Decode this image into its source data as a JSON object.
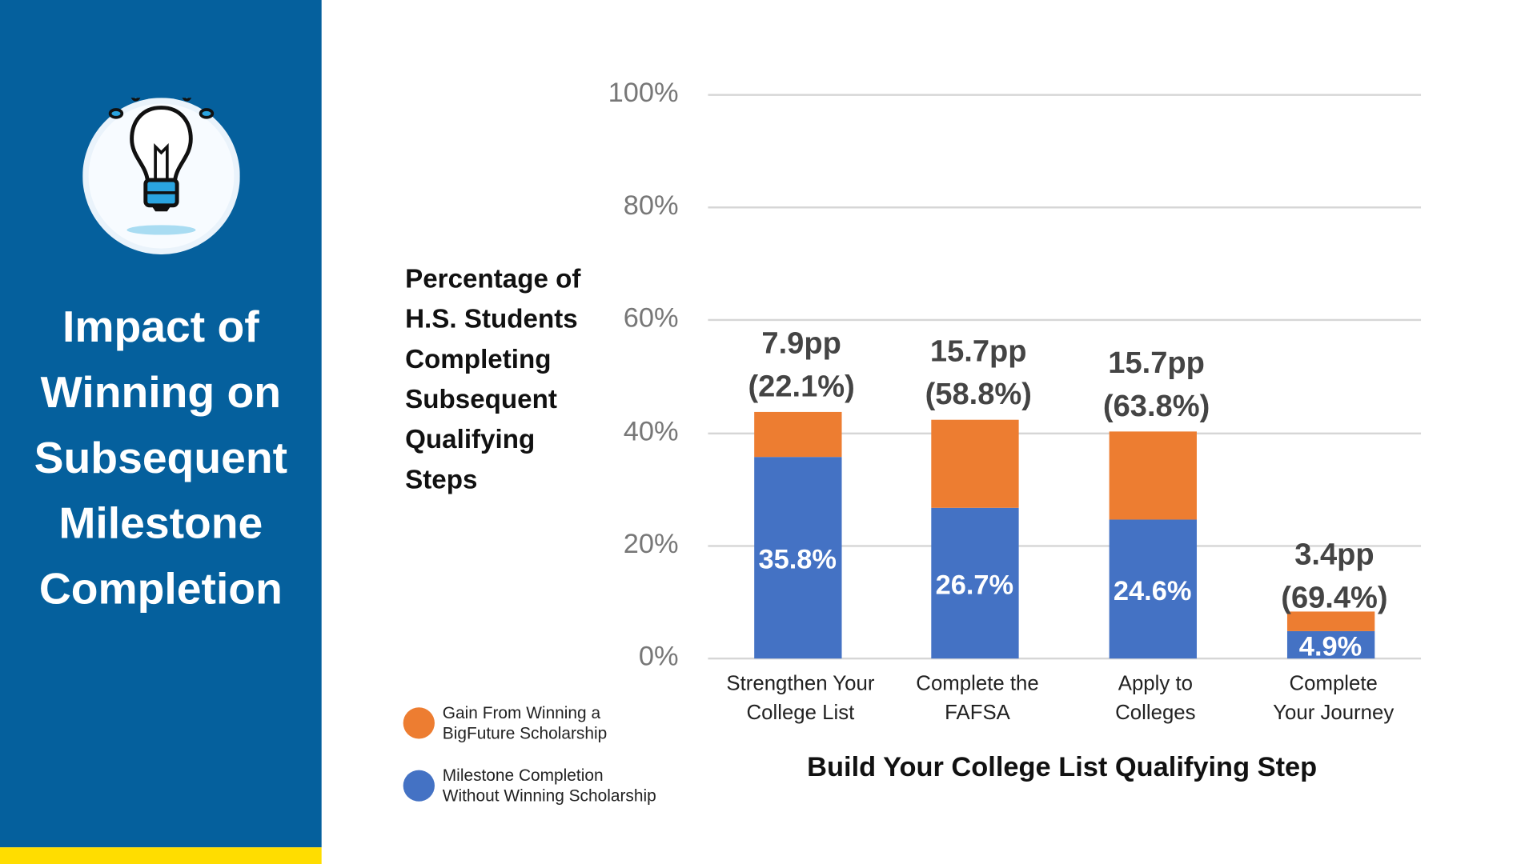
{
  "sidebar": {
    "title_lines": [
      "Impact of",
      "Winning on",
      "Subsequent",
      "Milestone",
      "Completion"
    ],
    "icon": "lightbulb-icon",
    "colors": {
      "panel": "#05609d",
      "accent_bar": "#ffdd00"
    }
  },
  "chart_data": {
    "type": "bar",
    "stacked": true,
    "title": "",
    "ylabel": "Percentage of H.S. Students Completing Subsequent Qualifying Steps",
    "xlabel": "Build Your College List Qualifying Step",
    "ylim": [
      0,
      100
    ],
    "yticks": [
      "0%",
      "20%",
      "40%",
      "60%",
      "80%",
      "100%"
    ],
    "grid": true,
    "legend_position": "bottom-left",
    "categories": [
      [
        "Strengthen Your",
        "College List"
      ],
      [
        "Complete the",
        "FAFSA"
      ],
      [
        "Apply to",
        "Colleges"
      ],
      [
        "Complete",
        "Your Journey"
      ]
    ],
    "series": [
      {
        "name": "Milestone Completion Without Winning Scholarship",
        "legend_lines": [
          "Milestone Completion",
          "Without Winning Scholarship"
        ],
        "color": "#4472c4",
        "values": [
          35.8,
          26.7,
          24.6,
          4.9
        ],
        "labels": [
          "35.8%",
          "26.7%",
          "24.6%",
          "4.9%"
        ]
      },
      {
        "name": "Gain From Winning a BigFuture Scholarship",
        "legend_lines": [
          "Gain From Winning a",
          "BigFuture Scholarship"
        ],
        "color": "#ed7d31",
        "values": [
          7.9,
          15.7,
          15.7,
          3.4
        ]
      }
    ],
    "annotations": [
      [
        "7.9pp",
        "(22.1%)"
      ],
      [
        "15.7pp",
        "(58.8%)"
      ],
      [
        "15.7pp",
        "(63.8%)"
      ],
      [
        "3.4pp",
        "(69.4%)"
      ]
    ]
  }
}
